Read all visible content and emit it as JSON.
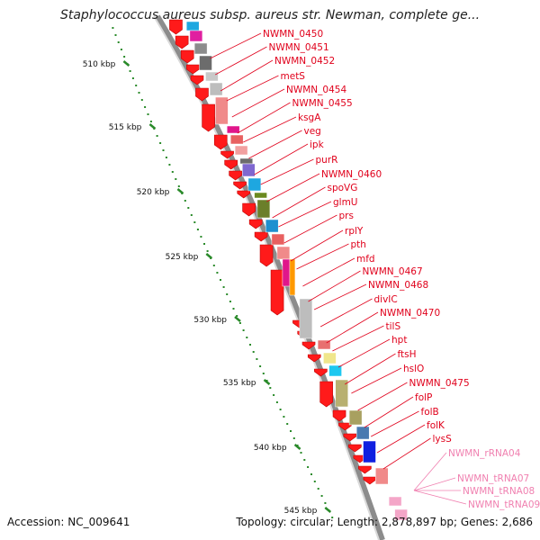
{
  "title": "Staphylococcus aureus subsp. aureus str. Newman, complete ge...",
  "footer": {
    "accession": "Accession: NC_009641",
    "topology": "Topology: circular; Length: 2,878,897 bp; Genes: 2,686"
  },
  "colors": {
    "axis_dots": "#2a8a2a",
    "gene_label": "#e0001b",
    "rna_label": "#f080b0",
    "backbone": "#8c8c8c"
  },
  "kbp_ticks": [
    {
      "label": "510 kbp"
    },
    {
      "label": "515 kbp"
    },
    {
      "label": "520 kbp"
    },
    {
      "label": "525 kbp"
    },
    {
      "label": "530 kbp"
    },
    {
      "label": "535 kbp"
    },
    {
      "label": "540 kbp"
    },
    {
      "label": "545 kbp"
    }
  ],
  "gene_labels": [
    "NWMN_0450",
    "NWMN_0451",
    "NWMN_0452",
    "metS",
    "NWMN_0454",
    "NWMN_0455",
    "ksgA",
    "veg",
    "ipk",
    "purR",
    "NWMN_0460",
    "spoVG",
    "glmU",
    "prs",
    "rplY",
    "pth",
    "mfd",
    "NWMN_0467",
    "NWMN_0468",
    "divIC",
    "NWMN_0470",
    "tilS",
    "hpt",
    "ftsH",
    "hslO",
    "NWMN_0475",
    "folP",
    "folB",
    "folK",
    "lysS"
  ],
  "rna_labels": [
    "NWMN_rRNA04",
    "NWMN_tRNA07",
    "NWMN_tRNA08",
    "NWMN_tRNA09"
  ]
}
